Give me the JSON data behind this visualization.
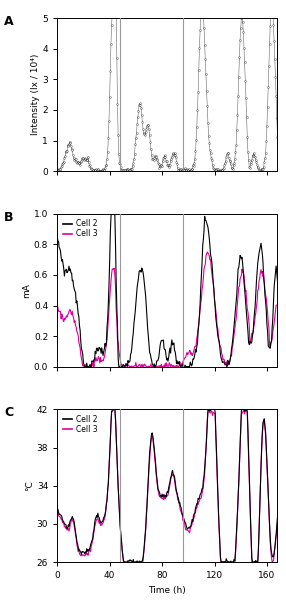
{
  "xlim": [
    0,
    168
  ],
  "xticks": [
    0,
    40,
    80,
    120,
    160
  ],
  "xlabel": "Time (h)",
  "vline1": 48,
  "vline2": 96,
  "vline_color": "#999999",
  "vline_lw": 0.8,
  "panel_A": {
    "label": "A",
    "ylabel": "Intensity (lx / 10⁴)",
    "ylim": [
      0,
      5
    ],
    "yticks": [
      0,
      1,
      2,
      3,
      4,
      5
    ]
  },
  "panel_B": {
    "label": "B",
    "ylabel": "mA",
    "ylim": [
      0,
      1.0
    ],
    "yticks": [
      0,
      0.2,
      0.4,
      0.6,
      0.8,
      1.0
    ],
    "legend": [
      "Cell 2",
      "Cell 3"
    ],
    "cell2_color": "black",
    "cell3_color": "#dd0099"
  },
  "panel_C": {
    "label": "C",
    "ylabel": "°C",
    "ylim": [
      26,
      42
    ],
    "yticks": [
      26,
      30,
      34,
      38,
      42
    ],
    "legend": [
      "Cell 2",
      "Cell 3"
    ],
    "cell2_color": "black",
    "cell3_color": "#dd0099"
  }
}
